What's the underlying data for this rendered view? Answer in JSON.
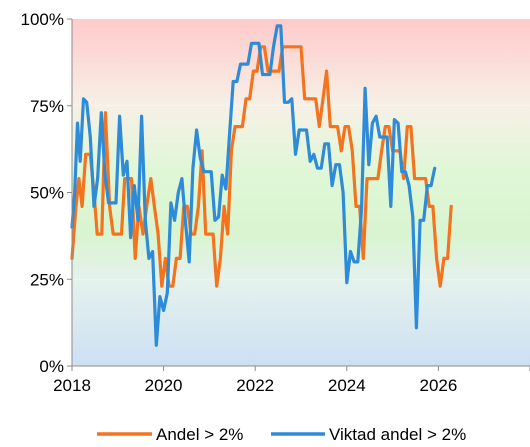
{
  "chart_data": {
    "type": "line",
    "title": "",
    "xlabel": "",
    "ylabel": "",
    "xlim": [
      2018,
      2028
    ],
    "ylim": [
      0,
      100
    ],
    "x_ticks": [
      "2018",
      "2020",
      "2022",
      "2024",
      "2026"
    ],
    "y_ticks": [
      "0%",
      "25%",
      "50%",
      "75%",
      "100%"
    ],
    "grid": false,
    "background_bands": [
      {
        "from": 100,
        "to": 75,
        "color": "#ffc9c9"
      },
      {
        "from": 75,
        "to": 25,
        "color": "#d8f5d0"
      },
      {
        "from": 25,
        "to": 0,
        "color": "#cfe3f5"
      }
    ],
    "legend_position": "bottom",
    "series": [
      {
        "name": "Andel > 2%",
        "color": "#f4731f",
        "points": [
          [
            2018.0,
            31
          ],
          [
            2018.08,
            45
          ],
          [
            2018.15,
            54
          ],
          [
            2018.22,
            46
          ],
          [
            2018.3,
            61
          ],
          [
            2018.4,
            61
          ],
          [
            2018.48,
            50
          ],
          [
            2018.55,
            38
          ],
          [
            2018.65,
            38
          ],
          [
            2018.73,
            73
          ],
          [
            2018.82,
            46
          ],
          [
            2018.9,
            38
          ],
          [
            2019.0,
            38
          ],
          [
            2019.08,
            38
          ],
          [
            2019.15,
            54
          ],
          [
            2019.22,
            54
          ],
          [
            2019.3,
            54
          ],
          [
            2019.38,
            31
          ],
          [
            2019.46,
            46
          ],
          [
            2019.55,
            38
          ],
          [
            2019.63,
            46
          ],
          [
            2019.72,
            54
          ],
          [
            2019.8,
            46
          ],
          [
            2019.88,
            38
          ],
          [
            2019.96,
            23
          ],
          [
            2020.04,
            31
          ],
          [
            2020.12,
            23
          ],
          [
            2020.2,
            23
          ],
          [
            2020.28,
            31
          ],
          [
            2020.36,
            31
          ],
          [
            2020.44,
            46
          ],
          [
            2020.52,
            46
          ],
          [
            2020.6,
            38
          ],
          [
            2020.68,
            38
          ],
          [
            2020.76,
            46
          ],
          [
            2020.84,
            62
          ],
          [
            2020.92,
            38
          ],
          [
            2021.0,
            38
          ],
          [
            2021.08,
            38
          ],
          [
            2021.16,
            23
          ],
          [
            2021.24,
            31
          ],
          [
            2021.32,
            46
          ],
          [
            2021.4,
            38
          ],
          [
            2021.48,
            62
          ],
          [
            2021.56,
            69
          ],
          [
            2021.64,
            69
          ],
          [
            2021.72,
            69
          ],
          [
            2021.8,
            77
          ],
          [
            2021.88,
            77
          ],
          [
            2021.96,
            85
          ],
          [
            2022.04,
            85
          ],
          [
            2022.12,
            92
          ],
          [
            2022.2,
            92
          ],
          [
            2022.28,
            85
          ],
          [
            2022.36,
            85
          ],
          [
            2022.44,
            85
          ],
          [
            2022.52,
            85
          ],
          [
            2022.6,
            92
          ],
          [
            2022.68,
            92
          ],
          [
            2022.76,
            92
          ],
          [
            2022.84,
            92
          ],
          [
            2022.92,
            92
          ],
          [
            2023.0,
            92
          ],
          [
            2023.08,
            77
          ],
          [
            2023.16,
            77
          ],
          [
            2023.24,
            77
          ],
          [
            2023.32,
            77
          ],
          [
            2023.4,
            69
          ],
          [
            2023.48,
            77
          ],
          [
            2023.56,
            85
          ],
          [
            2023.64,
            69
          ],
          [
            2023.72,
            69
          ],
          [
            2023.8,
            69
          ],
          [
            2023.88,
            62
          ],
          [
            2023.96,
            69
          ],
          [
            2024.04,
            69
          ],
          [
            2024.12,
            62
          ],
          [
            2024.2,
            46
          ],
          [
            2024.28,
            46
          ],
          [
            2024.36,
            31
          ],
          [
            2024.44,
            54
          ],
          [
            2024.52,
            54
          ],
          [
            2024.6,
            54
          ],
          [
            2024.68,
            54
          ],
          [
            2024.76,
            62
          ],
          [
            2024.84,
            69
          ],
          [
            2024.92,
            69
          ],
          [
            2025.0,
            62
          ],
          [
            2025.08,
            62
          ],
          [
            2025.16,
            62
          ],
          [
            2025.24,
            54
          ],
          [
            2025.32,
            69
          ],
          [
            2025.4,
            69
          ],
          [
            2025.48,
            54
          ],
          [
            2025.56,
            54
          ],
          [
            2025.64,
            54
          ],
          [
            2025.72,
            54
          ],
          [
            2025.8,
            46
          ],
          [
            2025.88,
            46
          ],
          [
            2025.96,
            31
          ],
          [
            2026.04,
            23
          ],
          [
            2026.12,
            31
          ],
          [
            2026.2,
            31
          ],
          [
            2026.28,
            46
          ]
        ]
      },
      {
        "name": "Viktad andel > 2%",
        "color": "#2e8bd8",
        "points": [
          [
            2018.0,
            40
          ],
          [
            2018.06,
            50
          ],
          [
            2018.12,
            70
          ],
          [
            2018.18,
            59
          ],
          [
            2018.25,
            77
          ],
          [
            2018.32,
            76
          ],
          [
            2018.4,
            66
          ],
          [
            2018.48,
            46
          ],
          [
            2018.56,
            54
          ],
          [
            2018.64,
            73
          ],
          [
            2018.72,
            55
          ],
          [
            2018.8,
            47
          ],
          [
            2018.88,
            47
          ],
          [
            2018.96,
            47
          ],
          [
            2019.04,
            72
          ],
          [
            2019.12,
            55
          ],
          [
            2019.2,
            59
          ],
          [
            2019.28,
            37
          ],
          [
            2019.36,
            52
          ],
          [
            2019.44,
            42
          ],
          [
            2019.52,
            72
          ],
          [
            2019.6,
            42
          ],
          [
            2019.68,
            31
          ],
          [
            2019.76,
            33
          ],
          [
            2019.84,
            6
          ],
          [
            2019.92,
            20
          ],
          [
            2020.0,
            16
          ],
          [
            2020.08,
            21
          ],
          [
            2020.16,
            47
          ],
          [
            2020.24,
            42
          ],
          [
            2020.32,
            50
          ],
          [
            2020.4,
            54
          ],
          [
            2020.48,
            41
          ],
          [
            2020.56,
            30
          ],
          [
            2020.64,
            57
          ],
          [
            2020.72,
            68
          ],
          [
            2020.8,
            60
          ],
          [
            2020.88,
            56
          ],
          [
            2020.96,
            56
          ],
          [
            2021.04,
            56
          ],
          [
            2021.12,
            42
          ],
          [
            2021.2,
            43
          ],
          [
            2021.28,
            55
          ],
          [
            2021.36,
            51
          ],
          [
            2021.44,
            67
          ],
          [
            2021.52,
            82
          ],
          [
            2021.6,
            82
          ],
          [
            2021.68,
            87
          ],
          [
            2021.76,
            87
          ],
          [
            2021.84,
            87
          ],
          [
            2021.92,
            93
          ],
          [
            2022.0,
            93
          ],
          [
            2022.08,
            93
          ],
          [
            2022.16,
            84
          ],
          [
            2022.24,
            84
          ],
          [
            2022.32,
            84
          ],
          [
            2022.4,
            92
          ],
          [
            2022.48,
            98
          ],
          [
            2022.56,
            98
          ],
          [
            2022.64,
            76
          ],
          [
            2022.72,
            76
          ],
          [
            2022.8,
            77
          ],
          [
            2022.88,
            61
          ],
          [
            2022.96,
            68
          ],
          [
            2023.04,
            68
          ],
          [
            2023.12,
            68
          ],
          [
            2023.2,
            59
          ],
          [
            2023.28,
            61
          ],
          [
            2023.36,
            57
          ],
          [
            2023.44,
            57
          ],
          [
            2023.52,
            64
          ],
          [
            2023.6,
            64
          ],
          [
            2023.68,
            52
          ],
          [
            2023.76,
            58
          ],
          [
            2023.84,
            58
          ],
          [
            2023.92,
            50
          ],
          [
            2024.0,
            24
          ],
          [
            2024.08,
            33
          ],
          [
            2024.16,
            30
          ],
          [
            2024.24,
            30
          ],
          [
            2024.32,
            45
          ],
          [
            2024.4,
            80
          ],
          [
            2024.48,
            58
          ],
          [
            2024.56,
            70
          ],
          [
            2024.64,
            72
          ],
          [
            2024.72,
            66
          ],
          [
            2024.8,
            66
          ],
          [
            2024.88,
            66
          ],
          [
            2024.96,
            46
          ],
          [
            2025.04,
            71
          ],
          [
            2025.12,
            70
          ],
          [
            2025.2,
            56
          ],
          [
            2025.28,
            56
          ],
          [
            2025.36,
            52
          ],
          [
            2025.44,
            43
          ],
          [
            2025.52,
            11
          ],
          [
            2025.6,
            42
          ],
          [
            2025.68,
            42
          ],
          [
            2025.76,
            52
          ],
          [
            2025.84,
            52
          ],
          [
            2025.92,
            57
          ]
        ]
      }
    ]
  }
}
